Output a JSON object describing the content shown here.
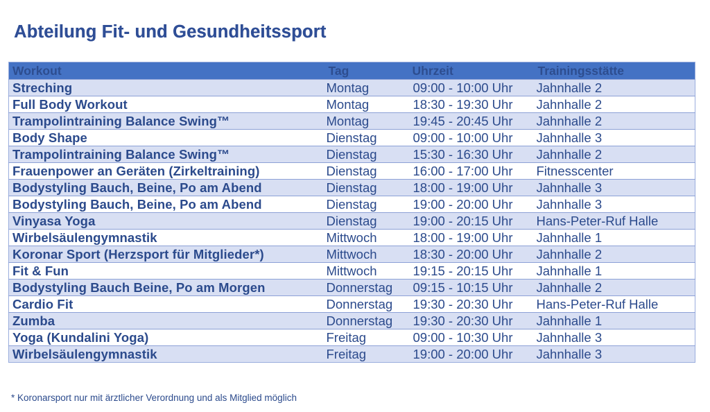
{
  "page_title": "Abteilung Fit- und Gesundheitssport",
  "columns": {
    "workout": "Workout",
    "day": "Tag",
    "time": "Uhrzeit",
    "venue": "Trainingsstätte"
  },
  "rows": [
    {
      "workout": "Streching",
      "day": "Montag",
      "time": "09:00 - 10:00 Uhr",
      "venue": "Jahnhalle 2"
    },
    {
      "workout": "Full Body Workout",
      "day": "Montag",
      "time": "18:30 - 19:30 Uhr",
      "venue": "Jahnhalle 2"
    },
    {
      "workout": "Trampolintraining Balance Swing™",
      "day": "Montag",
      "time": "19:45 - 20:45 Uhr",
      "venue": "Jahnhalle 2"
    },
    {
      "workout": "Body Shape",
      "day": "Dienstag",
      "time": "09:00 - 10:00 Uhr",
      "venue": "Jahnhalle 3"
    },
    {
      "workout": "Trampolintraining Balance Swing™",
      "day": "Dienstag",
      "time": "15:30 - 16:30 Uhr",
      "venue": "Jahnhalle 2"
    },
    {
      "workout": "Frauenpower an Geräten (Zirkeltraining)",
      "day": "Dienstag",
      "time": "16:00 - 17:00 Uhr",
      "venue": "Fitnesscenter"
    },
    {
      "workout": "Bodystyling Bauch, Beine, Po am Abend",
      "day": "Dienstag",
      "time": "18:00 - 19:00 Uhr",
      "venue": "Jahnhalle 3"
    },
    {
      "workout": "Bodystyling Bauch, Beine, Po am Abend",
      "day": "Dienstag",
      "time": "19:00 - 20:00 Uhr",
      "venue": "Jahnhalle 3"
    },
    {
      "workout": "Vinyasa Yoga",
      "day": "Dienstag",
      "time": "19:00 - 20:15 Uhr",
      "venue": "Hans-Peter-Ruf Halle"
    },
    {
      "workout": "Wirbelsäulengymnastik",
      "day": "Mittwoch",
      "time": "18:00 - 19:00 Uhr",
      "venue": "Jahnhalle 1"
    },
    {
      "workout": "Koronar Sport (Herzsport für Mitglieder*)",
      "day": "Mittwoch",
      "time": "18:30 - 20:00 Uhr",
      "venue": "Jahnhalle 2"
    },
    {
      "workout": "Fit & Fun",
      "day": "Mittwoch",
      "time": "19:15 - 20:15 Uhr",
      "venue": "Jahnhalle 1"
    },
    {
      "workout": "Bodystyling Bauch Beine, Po am Morgen",
      "day": "Donnerstag",
      "time": "09:15 - 10:15 Uhr",
      "venue": "Jahnhalle 2"
    },
    {
      "workout": "Cardio Fit",
      "day": "Donnerstag",
      "time": "19:30 - 20:30 Uhr",
      "venue": "Hans-Peter-Ruf Halle"
    },
    {
      "workout": "Zumba",
      "day": "Donnerstag",
      "time": "19:30 - 20:30 Uhr",
      "venue": "Jahnhalle 1"
    },
    {
      "workout": "Yoga (Kundalini Yoga)",
      "day": "Freitag",
      "time": "09:00 - 10:30 Uhr",
      "venue": "Jahnhalle 3"
    },
    {
      "workout": "Wirbelsäulengymnastik",
      "day": "Freitag",
      "time": "19:00 - 20:00 Uhr",
      "venue": "Jahnhalle 3"
    }
  ],
  "footnote": "* Koronarsport nur mit ärztlicher Verordnung und als Mitglied möglich",
  "colors": {
    "title": "#2f4e96",
    "header_bg": "#4472c4",
    "header_text": "#2d4d8f",
    "row_band": "#d8dff3",
    "row_plain": "#ffffff",
    "body_text": "#2b4a8c"
  }
}
